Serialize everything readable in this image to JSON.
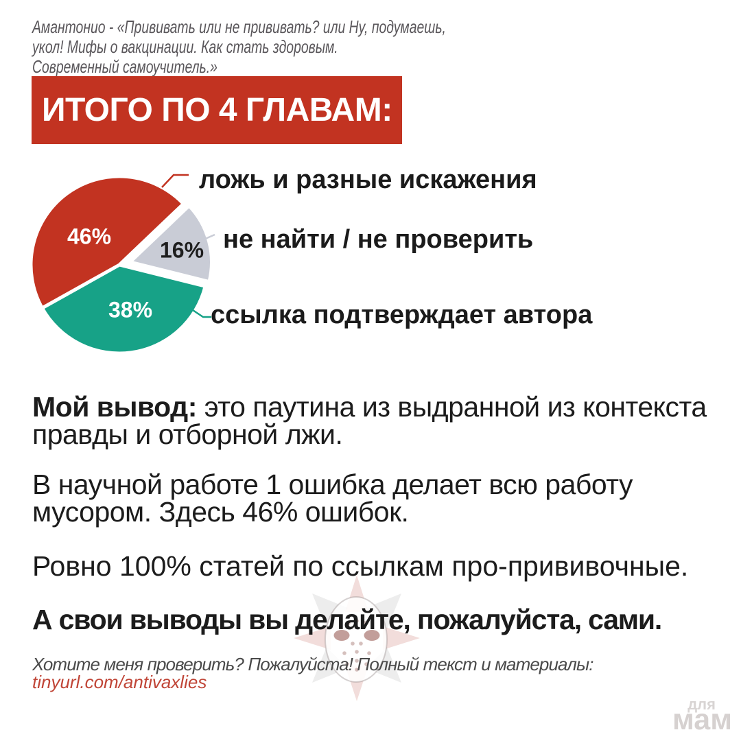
{
  "attribution": "Амантонио - «Прививать или не прививать? или Ну, подумаешь,\nукол! Мифы о вакцинации. Как стать здоровым.\nСовременный самоучитель.»",
  "title": "ИТОГО ПО 4 ГЛАВАМ:",
  "chart_data": {
    "type": "pie",
    "title": "ИТОГО ПО 4 ГЛАВАМ:",
    "slices": [
      {
        "label": "ложь и разные искажения",
        "value": 46,
        "pct_label": "46%",
        "color": "#c23321"
      },
      {
        "label": "не найти / не проверить",
        "value": 16,
        "pct_label": "16%",
        "color": "#c9ccd6"
      },
      {
        "label": "ссылка подтверждает автора",
        "value": 38,
        "pct_label": "38%",
        "color": "#17a287"
      }
    ],
    "legend_position": "right",
    "total": 100
  },
  "paragraphs": {
    "p1_bold": "Мой вывод:",
    "p1_rest": " это паутина из выдранной из контекста\nправды и отборной лжи.",
    "p2": "В научной работе 1 ошибка делает всю работу\nмусором. Здесь 46% ошибок.",
    "p3": "Ровно 100% статей по ссылкам про-прививочные.",
    "p4": "А свои выводы вы делайте, пожалуйста, сами."
  },
  "footer": {
    "note": "Хотите меня проверить? Пожалуйста! Полный текст и материалы:",
    "link": "tinyurl.com/antivaxlies"
  },
  "brand": {
    "line1": "для",
    "line2": "мам"
  },
  "colors": {
    "accent_red": "#c23321",
    "teal": "#17a287",
    "gray_slice": "#c9ccd6",
    "link_red": "#c04537"
  }
}
